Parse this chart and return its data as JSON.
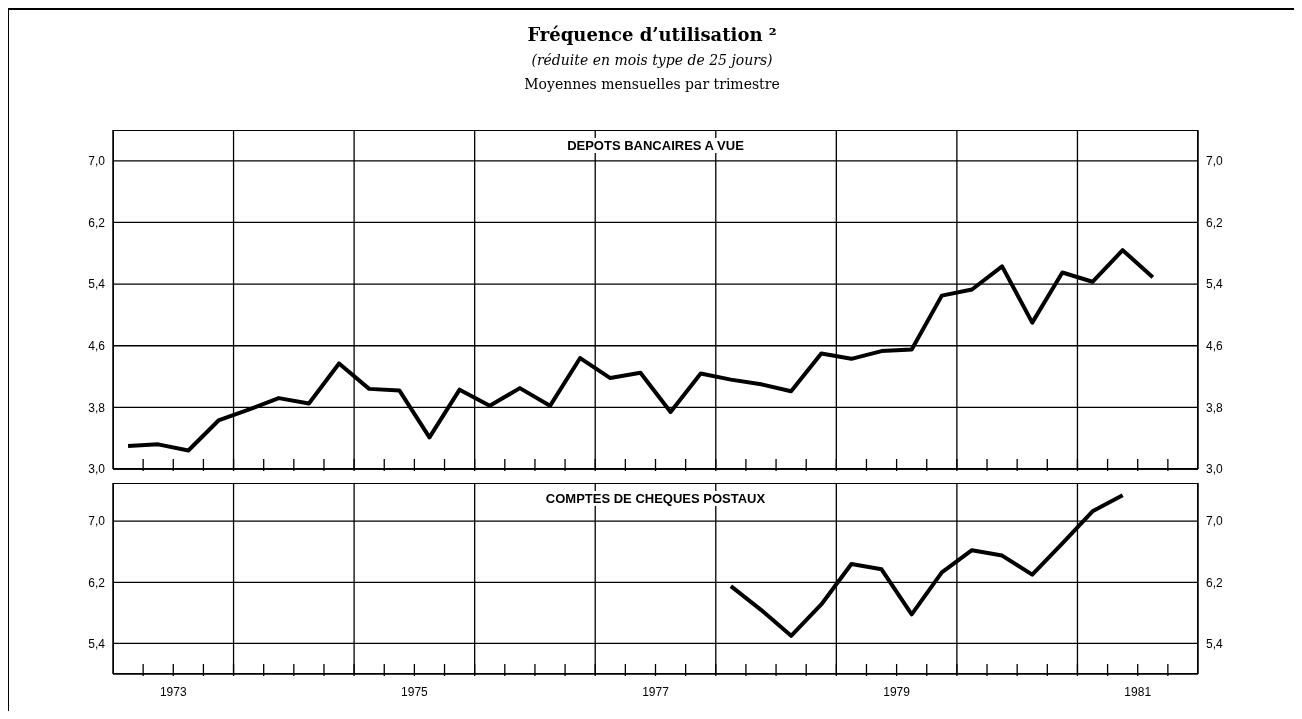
{
  "chart_data": [
    {
      "type": "line",
      "title": "Fréquence d’utilisation ²",
      "subtitle": "(réduite en mois type de 25 jours)",
      "annotations": [
        "Moyennes mensuelles par trimestre"
      ],
      "x": [
        1973.125,
        1973.375,
        1973.625,
        1973.875,
        1974.125,
        1974.375,
        1974.625,
        1974.875,
        1975.125,
        1975.375,
        1975.625,
        1975.875,
        1976.125,
        1976.375,
        1976.625,
        1976.875,
        1977.125,
        1977.375,
        1977.625,
        1977.875,
        1978.125,
        1978.375,
        1978.625,
        1978.875,
        1979.125,
        1979.375,
        1979.625,
        1979.875,
        1980.125,
        1980.375,
        1980.625,
        1980.875,
        1981.125,
        1981.375,
        1981.625
      ],
      "series": [
        {
          "name": "DEPOTS BANCAIRES A VUE",
          "color": "#000000",
          "values": [
            3.3,
            3.32,
            3.24,
            3.63,
            3.77,
            3.92,
            3.85,
            4.37,
            4.04,
            4.02,
            3.41,
            4.03,
            3.82,
            4.05,
            3.82,
            4.44,
            4.18,
            4.25,
            3.74,
            4.24,
            4.16,
            4.1,
            4.01,
            4.5,
            4.43,
            4.53,
            4.55,
            5.25,
            5.33,
            5.63,
            4.9,
            5.55,
            5.43,
            5.84,
            5.49
          ]
        }
      ],
      "xlim": [
        1973,
        1982
      ],
      "xticks": [
        {
          "value": 1973.25,
          "label": null
        },
        {
          "value": 1973.5,
          "label": null
        },
        {
          "value": 1973.75,
          "label": null
        },
        {
          "value": 1974,
          "label": null
        },
        {
          "value": 1974.25,
          "label": null
        },
        {
          "value": 1974.5,
          "label": null
        },
        {
          "value": 1974.75,
          "label": null
        },
        {
          "value": 1975,
          "label": null
        },
        {
          "value": 1975.25,
          "label": null
        },
        {
          "value": 1975.5,
          "label": null
        },
        {
          "value": 1975.75,
          "label": null
        },
        {
          "value": 1976,
          "label": null
        },
        {
          "value": 1976.25,
          "label": null
        },
        {
          "value": 1976.5,
          "label": null
        },
        {
          "value": 1976.75,
          "label": null
        },
        {
          "value": 1977,
          "label": null
        },
        {
          "value": 1977.25,
          "label": null
        },
        {
          "value": 1977.5,
          "label": null
        },
        {
          "value": 1977.75,
          "label": null
        },
        {
          "value": 1978,
          "label": null
        },
        {
          "value": 1978.25,
          "label": null
        },
        {
          "value": 1978.5,
          "label": null
        },
        {
          "value": 1978.75,
          "label": null
        },
        {
          "value": 1979,
          "label": null
        },
        {
          "value": 1979.25,
          "label": null
        },
        {
          "value": 1979.5,
          "label": null
        },
        {
          "value": 1979.75,
          "label": null
        },
        {
          "value": 1980,
          "label": null
        },
        {
          "value": 1980.25,
          "label": null
        },
        {
          "value": 1980.5,
          "label": null
        },
        {
          "value": 1980.75,
          "label": null
        },
        {
          "value": 1981,
          "label": null
        },
        {
          "value": 1981.25,
          "label": null
        },
        {
          "value": 1981.5,
          "label": null
        },
        {
          "value": 1981.75,
          "label": null
        }
      ],
      "ylim": [
        3.0,
        7.4
      ],
      "yticks": [
        {
          "value": 3.0,
          "label": "3,0"
        },
        {
          "value": 3.8,
          "label": "3,8"
        },
        {
          "value": 4.6,
          "label": "4,6"
        },
        {
          "value": 5.4,
          "label": "5,4"
        },
        {
          "value": 6.2,
          "label": "6,2"
        },
        {
          "value": 7.0,
          "label": "7,0"
        }
      ],
      "y2lim": [
        3.0,
        7.4
      ],
      "y2ticks": [
        {
          "value": 3.0,
          "label": "3,0"
        },
        {
          "value": 3.8,
          "label": "3,8"
        },
        {
          "value": 4.6,
          "label": "4,6"
        },
        {
          "value": 5.4,
          "label": "5,4"
        },
        {
          "value": 6.2,
          "label": "6,2"
        },
        {
          "value": 7.0,
          "label": "7,0"
        }
      ],
      "grid": true,
      "tick_labels": "y"
    },
    {
      "type": "line",
      "x": [
        1978.125,
        1978.375,
        1978.625,
        1978.875,
        1979.125,
        1979.375,
        1979.625,
        1979.875,
        1980.125,
        1980.375,
        1980.625,
        1980.875,
        1981.125,
        1981.375
      ],
      "series": [
        {
          "name": "COMPTES DE CHEQUES POSTAUX",
          "color": "#000000",
          "values": [
            6.15,
            5.84,
            5.5,
            5.91,
            6.44,
            6.37,
            5.78,
            6.33,
            6.62,
            6.55,
            6.3,
            6.71,
            7.13,
            7.34
          ]
        }
      ],
      "xlim": [
        1973,
        1982
      ],
      "xticks": [
        {
          "value": 1973.25,
          "label": null
        },
        {
          "value": 1973.5,
          "label": "1973"
        },
        {
          "value": 1973.75,
          "label": null
        },
        {
          "value": 1974,
          "label": null
        },
        {
          "value": 1974.25,
          "label": null
        },
        {
          "value": 1974.5,
          "label": null
        },
        {
          "value": 1974.75,
          "label": null
        },
        {
          "value": 1975,
          "label": null
        },
        {
          "value": 1975.25,
          "label": null
        },
        {
          "value": 1975.5,
          "label": "1975"
        },
        {
          "value": 1975.75,
          "label": null
        },
        {
          "value": 1976,
          "label": null
        },
        {
          "value": 1976.25,
          "label": null
        },
        {
          "value": 1976.5,
          "label": null
        },
        {
          "value": 1976.75,
          "label": null
        },
        {
          "value": 1977,
          "label": null
        },
        {
          "value": 1977.25,
          "label": null
        },
        {
          "value": 1977.5,
          "label": "1977"
        },
        {
          "value": 1977.75,
          "label": null
        },
        {
          "value": 1978,
          "label": null
        },
        {
          "value": 1978.25,
          "label": null
        },
        {
          "value": 1978.5,
          "label": null
        },
        {
          "value": 1978.75,
          "label": null
        },
        {
          "value": 1979,
          "label": null
        },
        {
          "value": 1979.25,
          "label": null
        },
        {
          "value": 1979.5,
          "label": "1979"
        },
        {
          "value": 1979.75,
          "label": null
        },
        {
          "value": 1980,
          "label": null
        },
        {
          "value": 1980.25,
          "label": null
        },
        {
          "value": 1980.5,
          "label": null
        },
        {
          "value": 1980.75,
          "label": null
        },
        {
          "value": 1981,
          "label": null
        },
        {
          "value": 1981.25,
          "label": null
        },
        {
          "value": 1981.5,
          "label": "1981"
        },
        {
          "value": 1981.75,
          "label": null
        }
      ],
      "ylim": [
        5.0,
        7.5
      ],
      "yticks": [
        {
          "value": 5.4,
          "label": "5,4"
        },
        {
          "value": 6.2,
          "label": "6,2"
        },
        {
          "value": 7.0,
          "label": "7,0"
        }
      ],
      "y2lim": [
        5.0,
        7.5
      ],
      "y2ticks": [
        {
          "value": 5.4,
          "label": "5,4"
        },
        {
          "value": 6.2,
          "label": "6,2"
        },
        {
          "value": 7.0,
          "label": "7,0"
        }
      ],
      "grid": true
    }
  ]
}
